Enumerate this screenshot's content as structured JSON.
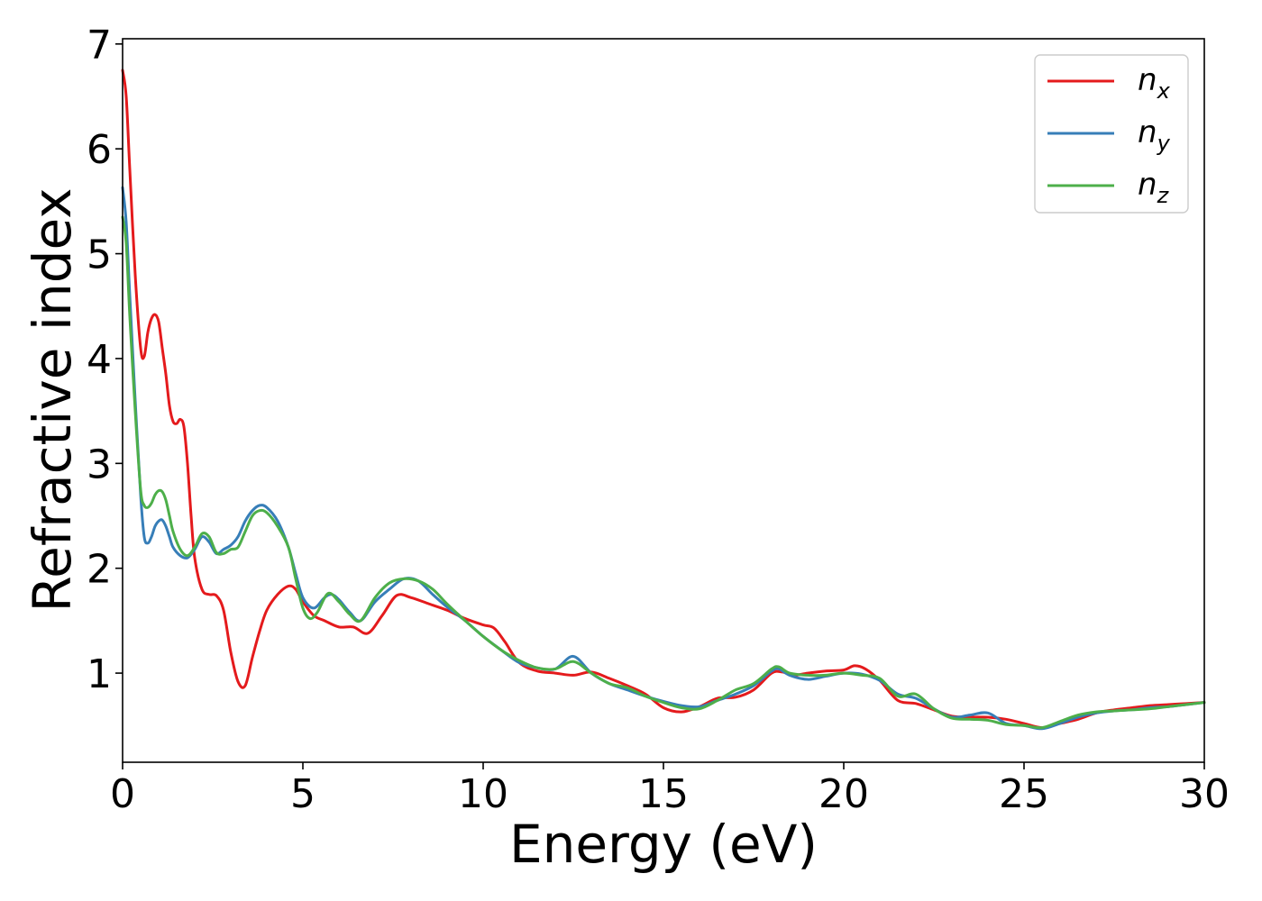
{
  "chart_data": {
    "type": "line",
    "title": "",
    "xlabel": "Energy (eV)",
    "ylabel": "Refractive index",
    "xlim": [
      0,
      30
    ],
    "ylim": [
      0.15,
      7.05
    ],
    "xticks": [
      0,
      5,
      10,
      15,
      20,
      25,
      30
    ],
    "yticks": [
      1,
      2,
      3,
      4,
      5,
      6,
      7
    ],
    "grid": false,
    "legend_position": "top-right",
    "series": [
      {
        "name": "n_x",
        "label_base": "n",
        "label_sub": "x",
        "color": "#e41a1c",
        "x": [
          0,
          0.1,
          0.2,
          0.35,
          0.5,
          0.6,
          0.7,
          0.8,
          0.9,
          1.0,
          1.1,
          1.2,
          1.3,
          1.4,
          1.5,
          1.6,
          1.7,
          1.8,
          1.9,
          2.0,
          2.2,
          2.4,
          2.6,
          2.8,
          3.0,
          3.2,
          3.4,
          3.6,
          3.8,
          4.0,
          4.3,
          4.6,
          4.8,
          5.0,
          5.3,
          5.6,
          6.0,
          6.4,
          6.8,
          7.2,
          7.6,
          8.0,
          8.5,
          9.0,
          9.5,
          10.0,
          10.3,
          10.6,
          11.0,
          11.5,
          12.0,
          12.5,
          13.0,
          13.5,
          14.0,
          14.5,
          15.0,
          15.5,
          16.0,
          16.5,
          17.0,
          17.5,
          18.0,
          18.3,
          18.6,
          19.0,
          19.5,
          20.0,
          20.3,
          20.6,
          21.0,
          21.5,
          22.0,
          22.5,
          23.0,
          23.5,
          24.0,
          24.5,
          25.0,
          25.5,
          26.0,
          26.5,
          27.0,
          27.5,
          28.0,
          28.5,
          29.0,
          29.5,
          30.0
        ],
        "y": [
          6.75,
          6.5,
          5.8,
          4.8,
          4.1,
          4.02,
          4.25,
          4.38,
          4.42,
          4.35,
          4.1,
          3.85,
          3.55,
          3.4,
          3.38,
          3.42,
          3.35,
          3.0,
          2.5,
          2.1,
          1.8,
          1.75,
          1.74,
          1.6,
          1.2,
          0.92,
          0.88,
          1.15,
          1.4,
          1.6,
          1.75,
          1.83,
          1.8,
          1.68,
          1.55,
          1.5,
          1.44,
          1.44,
          1.38,
          1.55,
          1.74,
          1.72,
          1.66,
          1.6,
          1.52,
          1.46,
          1.43,
          1.3,
          1.1,
          1.02,
          1.0,
          0.98,
          1.01,
          0.95,
          0.88,
          0.8,
          0.67,
          0.63,
          0.68,
          0.76,
          0.77,
          0.84,
          1.0,
          1.01,
          0.98,
          1.0,
          1.02,
          1.03,
          1.07,
          1.04,
          0.93,
          0.74,
          0.71,
          0.65,
          0.59,
          0.58,
          0.58,
          0.56,
          0.52,
          0.48,
          0.52,
          0.56,
          0.62,
          0.65,
          0.67,
          0.69,
          0.7,
          0.71,
          0.72
        ]
      },
      {
        "name": "n_y",
        "label_base": "n",
        "label_sub": "y",
        "color": "#377eb8",
        "x": [
          0,
          0.1,
          0.2,
          0.35,
          0.5,
          0.6,
          0.7,
          0.8,
          0.9,
          1.0,
          1.1,
          1.2,
          1.3,
          1.4,
          1.6,
          1.8,
          2.0,
          2.2,
          2.4,
          2.6,
          2.8,
          3.0,
          3.2,
          3.4,
          3.6,
          3.8,
          4.0,
          4.3,
          4.6,
          4.8,
          5.0,
          5.3,
          5.6,
          5.8,
          6.0,
          6.3,
          6.6,
          7.0,
          7.4,
          7.8,
          8.2,
          8.6,
          9.0,
          9.5,
          10.0,
          10.5,
          11.0,
          11.5,
          12.0,
          12.5,
          13.0,
          13.5,
          14.0,
          14.5,
          15.0,
          15.5,
          16.0,
          16.5,
          17.0,
          17.5,
          18.0,
          18.2,
          18.5,
          19.0,
          19.5,
          20.0,
          20.5,
          21.0,
          21.5,
          22.0,
          22.5,
          23.0,
          23.5,
          24.0,
          24.5,
          25.0,
          25.5,
          26.0,
          26.5,
          27.0,
          27.5,
          28.0,
          28.5,
          29.0,
          29.5,
          30.0
        ],
        "y": [
          5.63,
          5.3,
          4.6,
          3.6,
          2.7,
          2.3,
          2.24,
          2.3,
          2.4,
          2.45,
          2.46,
          2.4,
          2.3,
          2.2,
          2.12,
          2.1,
          2.18,
          2.3,
          2.25,
          2.14,
          2.18,
          2.22,
          2.3,
          2.45,
          2.55,
          2.6,
          2.58,
          2.45,
          2.2,
          1.95,
          1.72,
          1.62,
          1.72,
          1.75,
          1.7,
          1.58,
          1.5,
          1.68,
          1.8,
          1.9,
          1.88,
          1.75,
          1.63,
          1.5,
          1.35,
          1.22,
          1.1,
          1.05,
          1.04,
          1.16,
          1.0,
          0.9,
          0.84,
          0.78,
          0.73,
          0.69,
          0.68,
          0.74,
          0.8,
          0.88,
          1.02,
          1.04,
          0.98,
          0.94,
          0.97,
          1.0,
          0.99,
          0.93,
          0.8,
          0.76,
          0.66,
          0.58,
          0.6,
          0.62,
          0.52,
          0.5,
          0.47,
          0.52,
          0.58,
          0.62,
          0.64,
          0.65,
          0.67,
          0.68,
          0.7,
          0.72
        ]
      },
      {
        "name": "n_z",
        "label_base": "n",
        "label_sub": "z",
        "color": "#4daf4a",
        "x": [
          0,
          0.1,
          0.2,
          0.35,
          0.5,
          0.6,
          0.7,
          0.8,
          0.9,
          1.0,
          1.1,
          1.2,
          1.3,
          1.4,
          1.6,
          1.8,
          2.0,
          2.2,
          2.4,
          2.6,
          2.8,
          3.0,
          3.2,
          3.4,
          3.6,
          3.8,
          4.0,
          4.3,
          4.6,
          4.8,
          5.0,
          5.2,
          5.4,
          5.7,
          6.0,
          6.3,
          6.6,
          7.0,
          7.4,
          7.8,
          8.2,
          8.6,
          9.0,
          9.5,
          10.0,
          10.5,
          11.0,
          11.5,
          12.0,
          12.5,
          13.0,
          13.5,
          14.0,
          14.5,
          15.0,
          15.5,
          16.0,
          16.5,
          17.0,
          17.5,
          18.0,
          18.2,
          18.5,
          19.0,
          19.5,
          20.0,
          20.5,
          21.0,
          21.5,
          22.0,
          22.5,
          23.0,
          23.5,
          24.0,
          24.5,
          25.0,
          25.5,
          26.0,
          26.5,
          27.0,
          27.5,
          28.0,
          28.5,
          29.0,
          29.5,
          30.0
        ],
        "y": [
          5.35,
          5.1,
          4.4,
          3.5,
          2.75,
          2.6,
          2.58,
          2.62,
          2.7,
          2.74,
          2.73,
          2.65,
          2.5,
          2.35,
          2.18,
          2.12,
          2.2,
          2.33,
          2.3,
          2.15,
          2.14,
          2.18,
          2.2,
          2.35,
          2.5,
          2.55,
          2.53,
          2.4,
          2.2,
          1.9,
          1.62,
          1.52,
          1.58,
          1.76,
          1.68,
          1.56,
          1.5,
          1.72,
          1.86,
          1.9,
          1.88,
          1.8,
          1.66,
          1.5,
          1.35,
          1.22,
          1.12,
          1.05,
          1.04,
          1.11,
          1.0,
          0.9,
          0.86,
          0.78,
          0.72,
          0.67,
          0.66,
          0.74,
          0.84,
          0.9,
          1.04,
          1.06,
          1.0,
          0.98,
          0.98,
          1.0,
          0.98,
          0.95,
          0.78,
          0.8,
          0.66,
          0.57,
          0.56,
          0.55,
          0.51,
          0.5,
          0.48,
          0.54,
          0.6,
          0.63,
          0.64,
          0.65,
          0.66,
          0.68,
          0.7,
          0.72
        ]
      }
    ]
  }
}
